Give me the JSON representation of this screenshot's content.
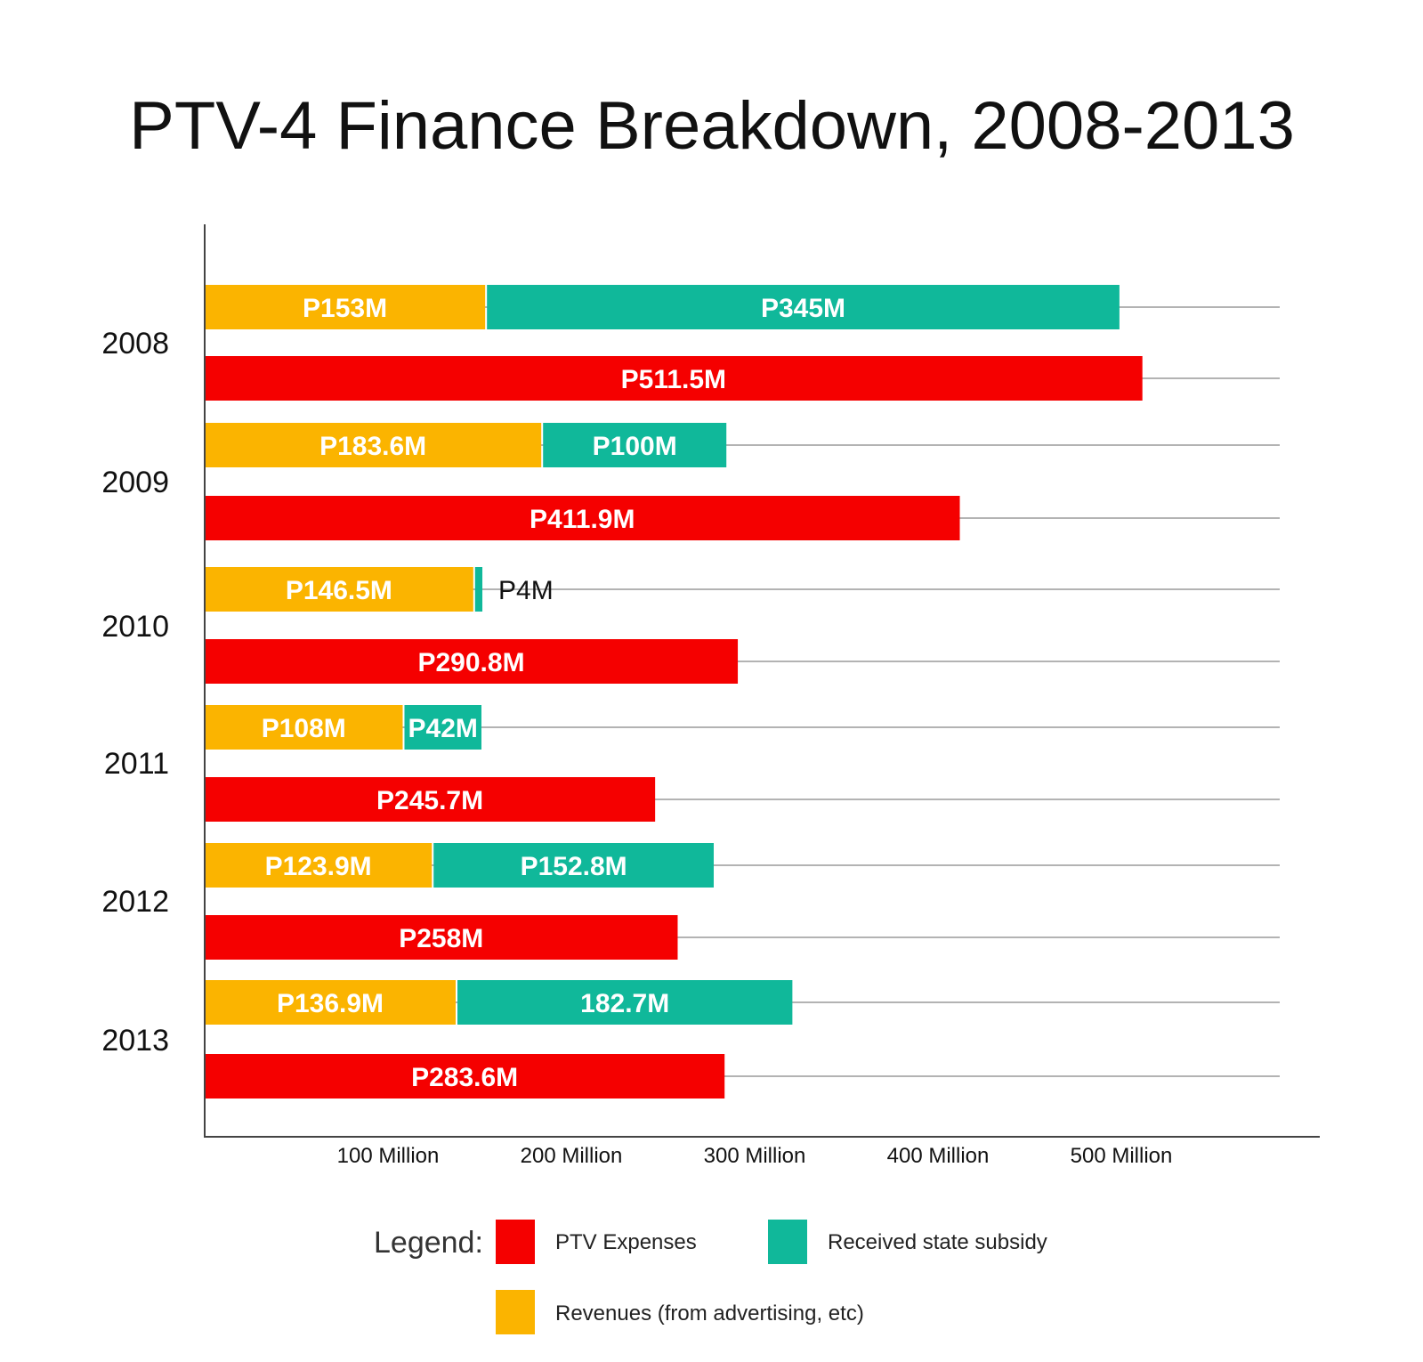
{
  "chart_data": {
    "type": "bar",
    "orientation": "horizontal",
    "title": "PTV-4 Finance Breakdown, 2008-2013",
    "categories": [
      "2008",
      "2009",
      "2010",
      "2011",
      "2012",
      "2013"
    ],
    "series": [
      {
        "key": "revenues",
        "values": [
          153,
          183.6,
          146.5,
          108,
          123.9,
          136.9
        ],
        "labels": [
          "P153M",
          "P183.6M",
          "P146.5M",
          "P108M",
          "P123.9M",
          "P136.9M"
        ],
        "stack": "income"
      },
      {
        "key": "subsidy",
        "values": [
          345,
          100,
          4,
          42,
          152.8,
          182.7
        ],
        "labels": [
          "P345M",
          "P100M",
          "P4M",
          "P42M",
          "P152.8M",
          "182.7M"
        ],
        "stack": "income"
      },
      {
        "key": "expenses",
        "values": [
          511.5,
          411.9,
          290.8,
          245.7,
          258,
          283.6
        ],
        "labels": [
          "P511.5M",
          "P411.9M",
          "P290.8M",
          "P245.7M",
          "P258M",
          "P283.6M"
        ],
        "stack": "expenses"
      }
    ],
    "x_ticks": [
      {
        "value": 100,
        "label": "100 Million"
      },
      {
        "value": 200,
        "label": "200 Million"
      },
      {
        "value": 300,
        "label": "300 Million"
      },
      {
        "value": 400,
        "label": "400 Million"
      },
      {
        "value": 500,
        "label": "500 Million"
      }
    ],
    "xlim": [
      0,
      590
    ],
    "units": "million pesos",
    "grid": "horizontal lines at each bar",
    "legend": {
      "title": "Legend:",
      "items": [
        {
          "key": "expenses",
          "label": "PTV Expenses"
        },
        {
          "key": "subsidy",
          "label": "Received state subsidy"
        },
        {
          "key": "revenues",
          "label": "Revenues (from advertising, etc)"
        }
      ],
      "placement": "bottom"
    },
    "colors": {
      "revenues": "#FBB400",
      "subsidy": "#10B89A",
      "expenses": "#F50000",
      "axis": "#444444",
      "grid": "#9a9a9a"
    }
  }
}
